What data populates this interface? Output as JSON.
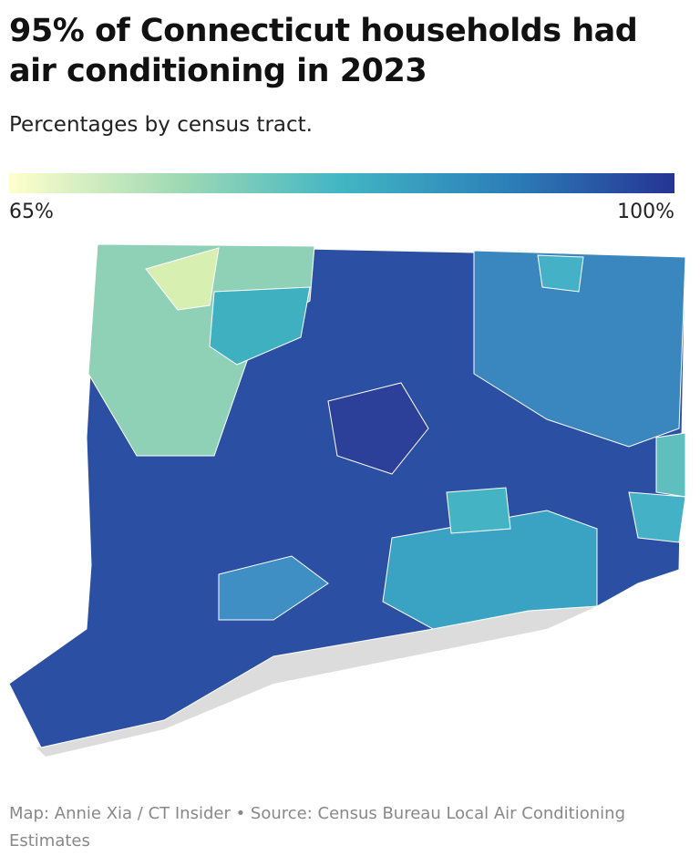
{
  "title": "95% of Connecticut households had air conditioning in 2023",
  "subtitle": "Percentages by census tract.",
  "legend": {
    "range": [
      65,
      100
    ],
    "ticks": [
      {
        "value": 65,
        "label": "65%"
      },
      {
        "value": 100,
        "label": "100%"
      }
    ],
    "colors": [
      "#ffffcc",
      "#a1dab4",
      "#41b6c4",
      "#2c7fb8",
      "#253494"
    ]
  },
  "source": "Map: Annie Xia / CT Insider • Source: Census Bureau Local Air Conditioning Estimates"
}
